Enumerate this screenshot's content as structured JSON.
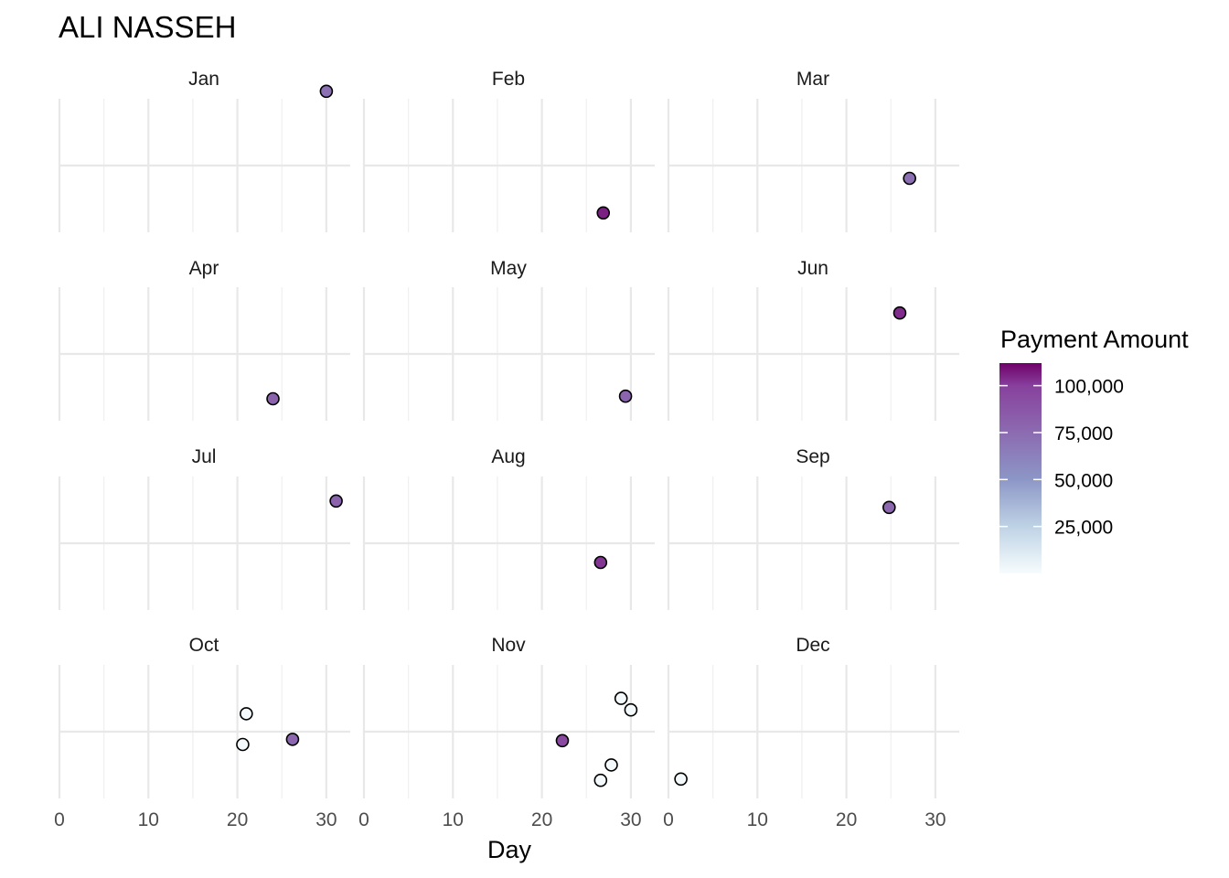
{
  "chart_data": {
    "type": "scatter",
    "title": "ALI NASSEH",
    "xlabel": "Day",
    "ylabel": "",
    "xlim": [
      0,
      32
    ],
    "x_ticks": [
      "0",
      "10",
      "20",
      "30"
    ],
    "grid": true,
    "legend": {
      "title": "Payment Amount",
      "position": "right",
      "min": 0,
      "max": 112000,
      "ticks": [
        {
          "value": 100000,
          "label": "100,000"
        },
        {
          "value": 75000,
          "label": "75,000"
        },
        {
          "value": 50000,
          "label": "50,000"
        },
        {
          "value": 25000,
          "label": "25,000"
        }
      ],
      "colors": [
        "#f7fcfd",
        "#bfd3e6",
        "#8c96c6",
        "#8c6bb1",
        "#88419d",
        "#6e016b"
      ]
    },
    "panels": [
      {
        "label": "Jan",
        "points": [
          {
            "day": 30.0,
            "jitter": 0.58,
            "amount": 72000
          }
        ]
      },
      {
        "label": "Feb",
        "points": [
          {
            "day": 26.9,
            "jitter": -0.37,
            "amount": 106000
          }
        ]
      },
      {
        "label": "Mar",
        "points": [
          {
            "day": 27.1,
            "jitter": -0.1,
            "amount": 73000
          }
        ]
      },
      {
        "label": "Apr",
        "points": [
          {
            "day": 24.0,
            "jitter": -0.35,
            "amount": 80000
          }
        ]
      },
      {
        "label": "May",
        "points": [
          {
            "day": 29.4,
            "jitter": -0.33,
            "amount": 79000
          }
        ]
      },
      {
        "label": "Jun",
        "points": [
          {
            "day": 26.0,
            "jitter": 0.32,
            "amount": 104000
          }
        ]
      },
      {
        "label": "Jul",
        "points": [
          {
            "day": 31.1,
            "jitter": 0.33,
            "amount": 80000
          }
        ]
      },
      {
        "label": "Aug",
        "points": [
          {
            "day": 26.6,
            "jitter": -0.15,
            "amount": 102000
          }
        ]
      },
      {
        "label": "Sep",
        "points": [
          {
            "day": 24.8,
            "jitter": 0.28,
            "amount": 78000
          }
        ]
      },
      {
        "label": "Oct",
        "points": [
          {
            "day": 21.0,
            "jitter": 0.14,
            "amount": 1500
          },
          {
            "day": 20.6,
            "jitter": -0.1,
            "amount": 1500
          },
          {
            "day": 26.2,
            "jitter": -0.06,
            "amount": 78000
          }
        ]
      },
      {
        "label": "Nov",
        "points": [
          {
            "day": 28.9,
            "jitter": 0.26,
            "amount": 1500
          },
          {
            "day": 30.0,
            "jitter": 0.17,
            "amount": 1500
          },
          {
            "day": 22.3,
            "jitter": -0.07,
            "amount": 95000
          },
          {
            "day": 27.8,
            "jitter": -0.26,
            "amount": 1500
          },
          {
            "day": 26.6,
            "jitter": -0.38,
            "amount": 1500
          }
        ]
      },
      {
        "label": "Dec",
        "points": [
          {
            "day": 1.4,
            "jitter": -0.37,
            "amount": 1500
          }
        ]
      }
    ]
  }
}
